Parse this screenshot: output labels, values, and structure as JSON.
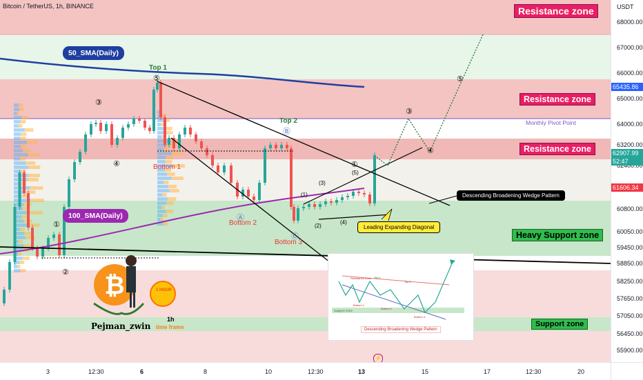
{
  "header": {
    "title": "Bitcoin / TetherUS, 1h, BINANCE"
  },
  "price_axis": {
    "currency": "USDT",
    "ticks": [
      "68000.00",
      "67000.00",
      "66000.00",
      "65000.00",
      "64000.00",
      "63200.00",
      "62400.00",
      "60800.00",
      "60050.00",
      "59450.00",
      "58850.00",
      "58250.00",
      "57650.00",
      "57050.00",
      "56450.00",
      "55900.00"
    ],
    "tags": {
      "pivot": "65435.86",
      "current": "62907.99",
      "countdown": "52:47",
      "level": "61606.34"
    }
  },
  "time_axis": {
    "ticks": [
      "3",
      "12:30",
      "6",
      "8",
      "10",
      "12:30",
      "13",
      "15",
      "17",
      "12:30",
      "20"
    ]
  },
  "zones": {
    "resistance_top": "Resistance zone",
    "resistance_mid": "Resistance zone",
    "resistance_low": "Resistance zone",
    "heavy_support": "Heavy Support zone",
    "support": "Support zone"
  },
  "labels": {
    "sma50": "50_SMA(Daily)",
    "sma100": "100_SMA(Daily)",
    "monthly_pivot": "Monthly Pivot Point",
    "top1": "Top 1",
    "top2": "Top 2",
    "bottom1": "Bottom 1",
    "bottom2": "Bottom 2",
    "bottom3": "Bottom 3",
    "wedge_callout": "Descending Broadening Wedge Pattern",
    "diagonal_callout": "Leading Expanding Diagonal"
  },
  "wave_marks": {
    "w5_top": "⑤",
    "w3": "③",
    "w4": "④",
    "w1": "①",
    "w2": "②",
    "wB": "Ⓑ",
    "wA": "Ⓐ",
    "wC": "Ⓒ",
    "sub1": "(1)",
    "sub2": "(2)",
    "sub3": "(3)",
    "sub4": "(4)",
    "sub5": "(5)",
    "proj1": "①",
    "proj3": "③",
    "proj4": "④",
    "proj5": "⑤"
  },
  "inset": {
    "title": "Descending Broadening Wedge Pattern",
    "resistance": "Resistance Zone",
    "support": "Support zone",
    "top1": "Top 1",
    "top2": "Top 2",
    "bottom1": "Bottom 1",
    "bottom2": "Bottom 2",
    "bottom3": "Bottom 3"
  },
  "logo": {
    "author": "Pejman_zwin",
    "timeframe_value": "1h",
    "timeframe_word": "time frame",
    "badge": "1 HOUR"
  },
  "colors": {
    "resistance_fill": "#f3c4c2",
    "resistance_strong": "#ef9a9a",
    "support_fill": "#c8e6c9",
    "heavy_support_fill": "#a5d6a7",
    "green_band": "#e8f5e9",
    "sma50": "#1e3fa0",
    "sma100": "#9c27b0",
    "bull_candle": "#26a69a",
    "bear_candle": "#ef5350",
    "accent_zone_label": "#e91e63",
    "support_label": "#2ebd4e",
    "callout_yellow": "#ffeb3b",
    "price_tag_blue": "#2962ff",
    "price_tag_green": "#26a69a",
    "price_tag_red": "#f23645"
  },
  "chart_data": {
    "type": "line",
    "x": [
      "3",
      "12:30",
      "6",
      "8",
      "10",
      "12:30",
      "13"
    ],
    "series": [
      {
        "name": "50_SMA(Daily)",
        "values": [
          66250,
          66150,
          66000,
          65900,
          65800,
          65700,
          65600
        ]
      },
      {
        "name": "100_SMA(Daily)",
        "values": [
          59450,
          59800,
          60100,
          60350,
          60700,
          61000,
          61600
        ]
      }
    ],
    "price_marks": [
      65435.86,
      62907.99,
      61606.34
    ],
    "ylim": [
      55900,
      68500
    ]
  }
}
